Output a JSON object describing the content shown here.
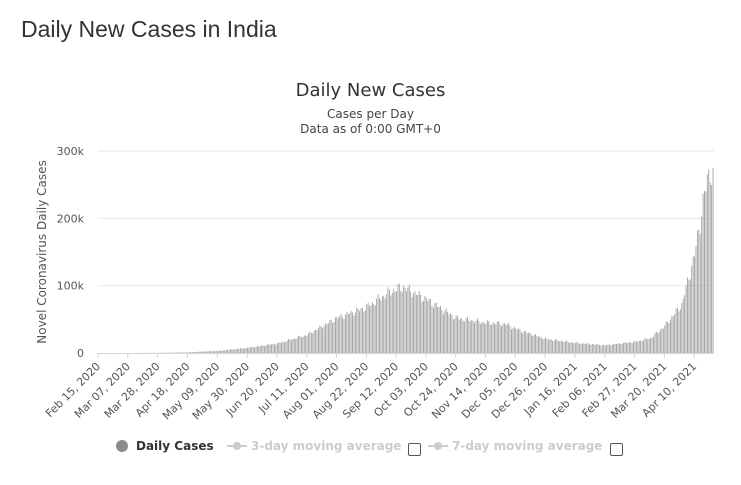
{
  "page": {
    "title": "Daily New Cases in India"
  },
  "legend": {
    "items": [
      {
        "label": "Daily Cases",
        "active": true
      },
      {
        "label": "3-day moving average",
        "active": false
      },
      {
        "label": "7-day moving average",
        "active": false
      }
    ]
  },
  "colors": {
    "bars": "#a0a0a0",
    "grid": "#e6e6e6",
    "axis": "#ccd6eb",
    "legend_inactive": "#cccccc"
  },
  "chart_data": {
    "type": "bar",
    "title": "Daily New Cases",
    "subtitle": [
      "Cases per Day",
      "Data as of 0:00 GMT+0"
    ],
    "xlabel": "",
    "ylabel": "Novel Coronavirus Daily Cases",
    "ylim": [
      0,
      300000
    ],
    "y_ticks": [
      {
        "value": 0,
        "label": "0"
      },
      {
        "value": 100000,
        "label": "100k"
      },
      {
        "value": 200000,
        "label": "200k"
      },
      {
        "value": 300000,
        "label": "300k"
      }
    ],
    "x_ticks": [
      "Feb 15, 2020",
      "Mar 07, 2020",
      "Mar 28, 2020",
      "Apr 18, 2020",
      "May 09, 2020",
      "May 30, 2020",
      "Jun 20, 2020",
      "Jul 11, 2020",
      "Aug 01, 2020",
      "Aug 22, 2020",
      "Sep 12, 2020",
      "Oct 03, 2020",
      "Oct 24, 2020",
      "Nov 14, 2020",
      "Dec 05, 2020",
      "Dec 26, 2020",
      "Jan 16, 2021",
      "Feb 06, 2021",
      "Feb 27, 2021",
      "Mar 20, 2021",
      "Apr 10, 2021"
    ],
    "start_date": "2020-02-15",
    "series": [
      {
        "name": "Daily Cases",
        "anchors": [
          [
            "2020-02-15",
            0
          ],
          [
            "2020-03-15",
            50
          ],
          [
            "2020-04-01",
            400
          ],
          [
            "2020-04-18",
            1000
          ],
          [
            "2020-05-09",
            3200
          ],
          [
            "2020-05-30",
            7500
          ],
          [
            "2020-06-20",
            14000
          ],
          [
            "2020-07-11",
            27000
          ],
          [
            "2020-08-01",
            52000
          ],
          [
            "2020-08-22",
            68000
          ],
          [
            "2020-09-05",
            88000
          ],
          [
            "2020-09-12",
            95000
          ],
          [
            "2020-09-17",
            97500
          ],
          [
            "2020-10-03",
            80000
          ],
          [
            "2020-10-24",
            52000
          ],
          [
            "2020-11-14",
            45000
          ],
          [
            "2020-11-28",
            43000
          ],
          [
            "2020-12-05",
            36000
          ],
          [
            "2020-12-26",
            21000
          ],
          [
            "2021-01-16",
            15000
          ],
          [
            "2021-02-06",
            11500
          ],
          [
            "2021-02-27",
            16500
          ],
          [
            "2021-03-10",
            22000
          ],
          [
            "2021-03-20",
            40000
          ],
          [
            "2021-04-01",
            72000
          ],
          [
            "2021-04-10",
            145000
          ],
          [
            "2021-04-17",
            235000
          ],
          [
            "2021-04-21",
            275000
          ],
          [
            "2021-04-23",
            260000
          ]
        ]
      }
    ],
    "grid": true,
    "legend_position": "bottom"
  }
}
